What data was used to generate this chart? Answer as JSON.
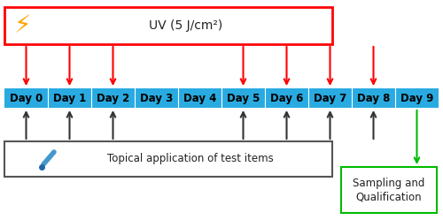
{
  "days": [
    "Day 0",
    "Day 1",
    "Day 2",
    "Day 3",
    "Day 4",
    "Day 5",
    "Day 6",
    "Day 7",
    "Day 8",
    "Day 9"
  ],
  "uv_days_idx": [
    0,
    1,
    2,
    5,
    6,
    7,
    8
  ],
  "topical_days_idx": [
    0,
    1,
    2,
    5,
    6,
    7,
    8
  ],
  "uv_label": "UV (5 J/cm²)",
  "topical_label": "Topical application of test items",
  "sampling_label": "Sampling and\nQualification",
  "bar_color": "#29ABE2",
  "uv_box_edge": "#ff0000",
  "uv_box_face": "#ffffff",
  "topical_box_edge": "#555555",
  "topical_box_face": "#ffffff",
  "sampling_box_edge": "#00bb00",
  "sampling_box_face": "#ffffff",
  "red_arrow_color": "#ff0000",
  "black_arrow_color": "#333333",
  "green_arrow_color": "#00bb00",
  "day_text_color": "#000000",
  "uv_text_color": "#222222",
  "topical_text_color": "#222222",
  "title_fontsize": 10,
  "day_fontsize": 8.5,
  "label_fontsize": 8.5,
  "sampling_fontsize": 8.5
}
